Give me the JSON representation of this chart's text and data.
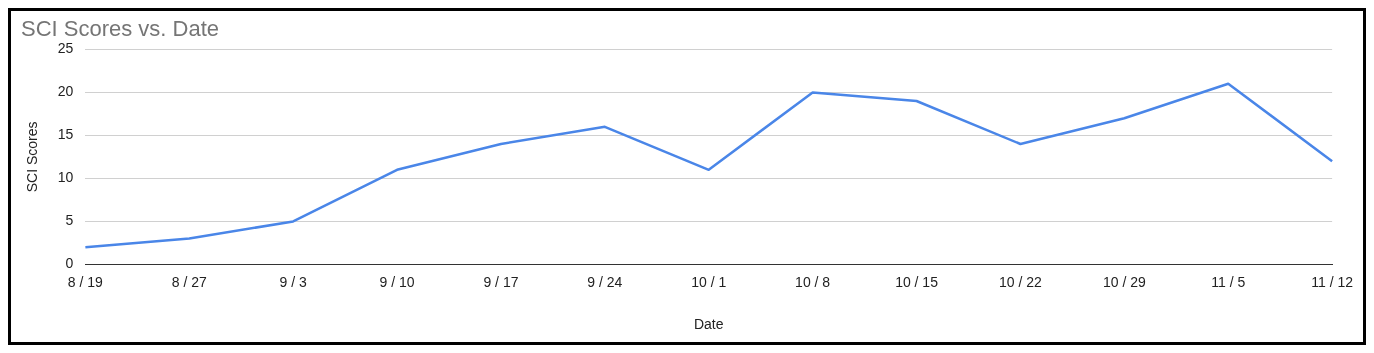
{
  "chart_data": {
    "type": "line",
    "title": "SCI Scores vs. Date",
    "xlabel": "Date",
    "ylabel": "SCI Scores",
    "categories": [
      "8 / 19",
      "8 / 27",
      "9 / 3",
      "9 / 10",
      "9 / 17",
      "9 / 24",
      "10 / 1",
      "10 / 8",
      "10 / 15",
      "10 / 22",
      "10 / 29",
      "11 / 5",
      "11 / 12"
    ],
    "series": [
      {
        "color": "#4a86e8",
        "values": [
          2,
          3,
          5,
          11,
          14,
          16,
          11,
          20,
          19,
          14,
          17,
          21,
          12
        ]
      }
    ],
    "ylim": [
      0,
      25
    ],
    "yticks": [
      0,
      5,
      10,
      15,
      20,
      25
    ],
    "grid": "y",
    "legend": false,
    "marker": "none",
    "line_style": "solid"
  }
}
